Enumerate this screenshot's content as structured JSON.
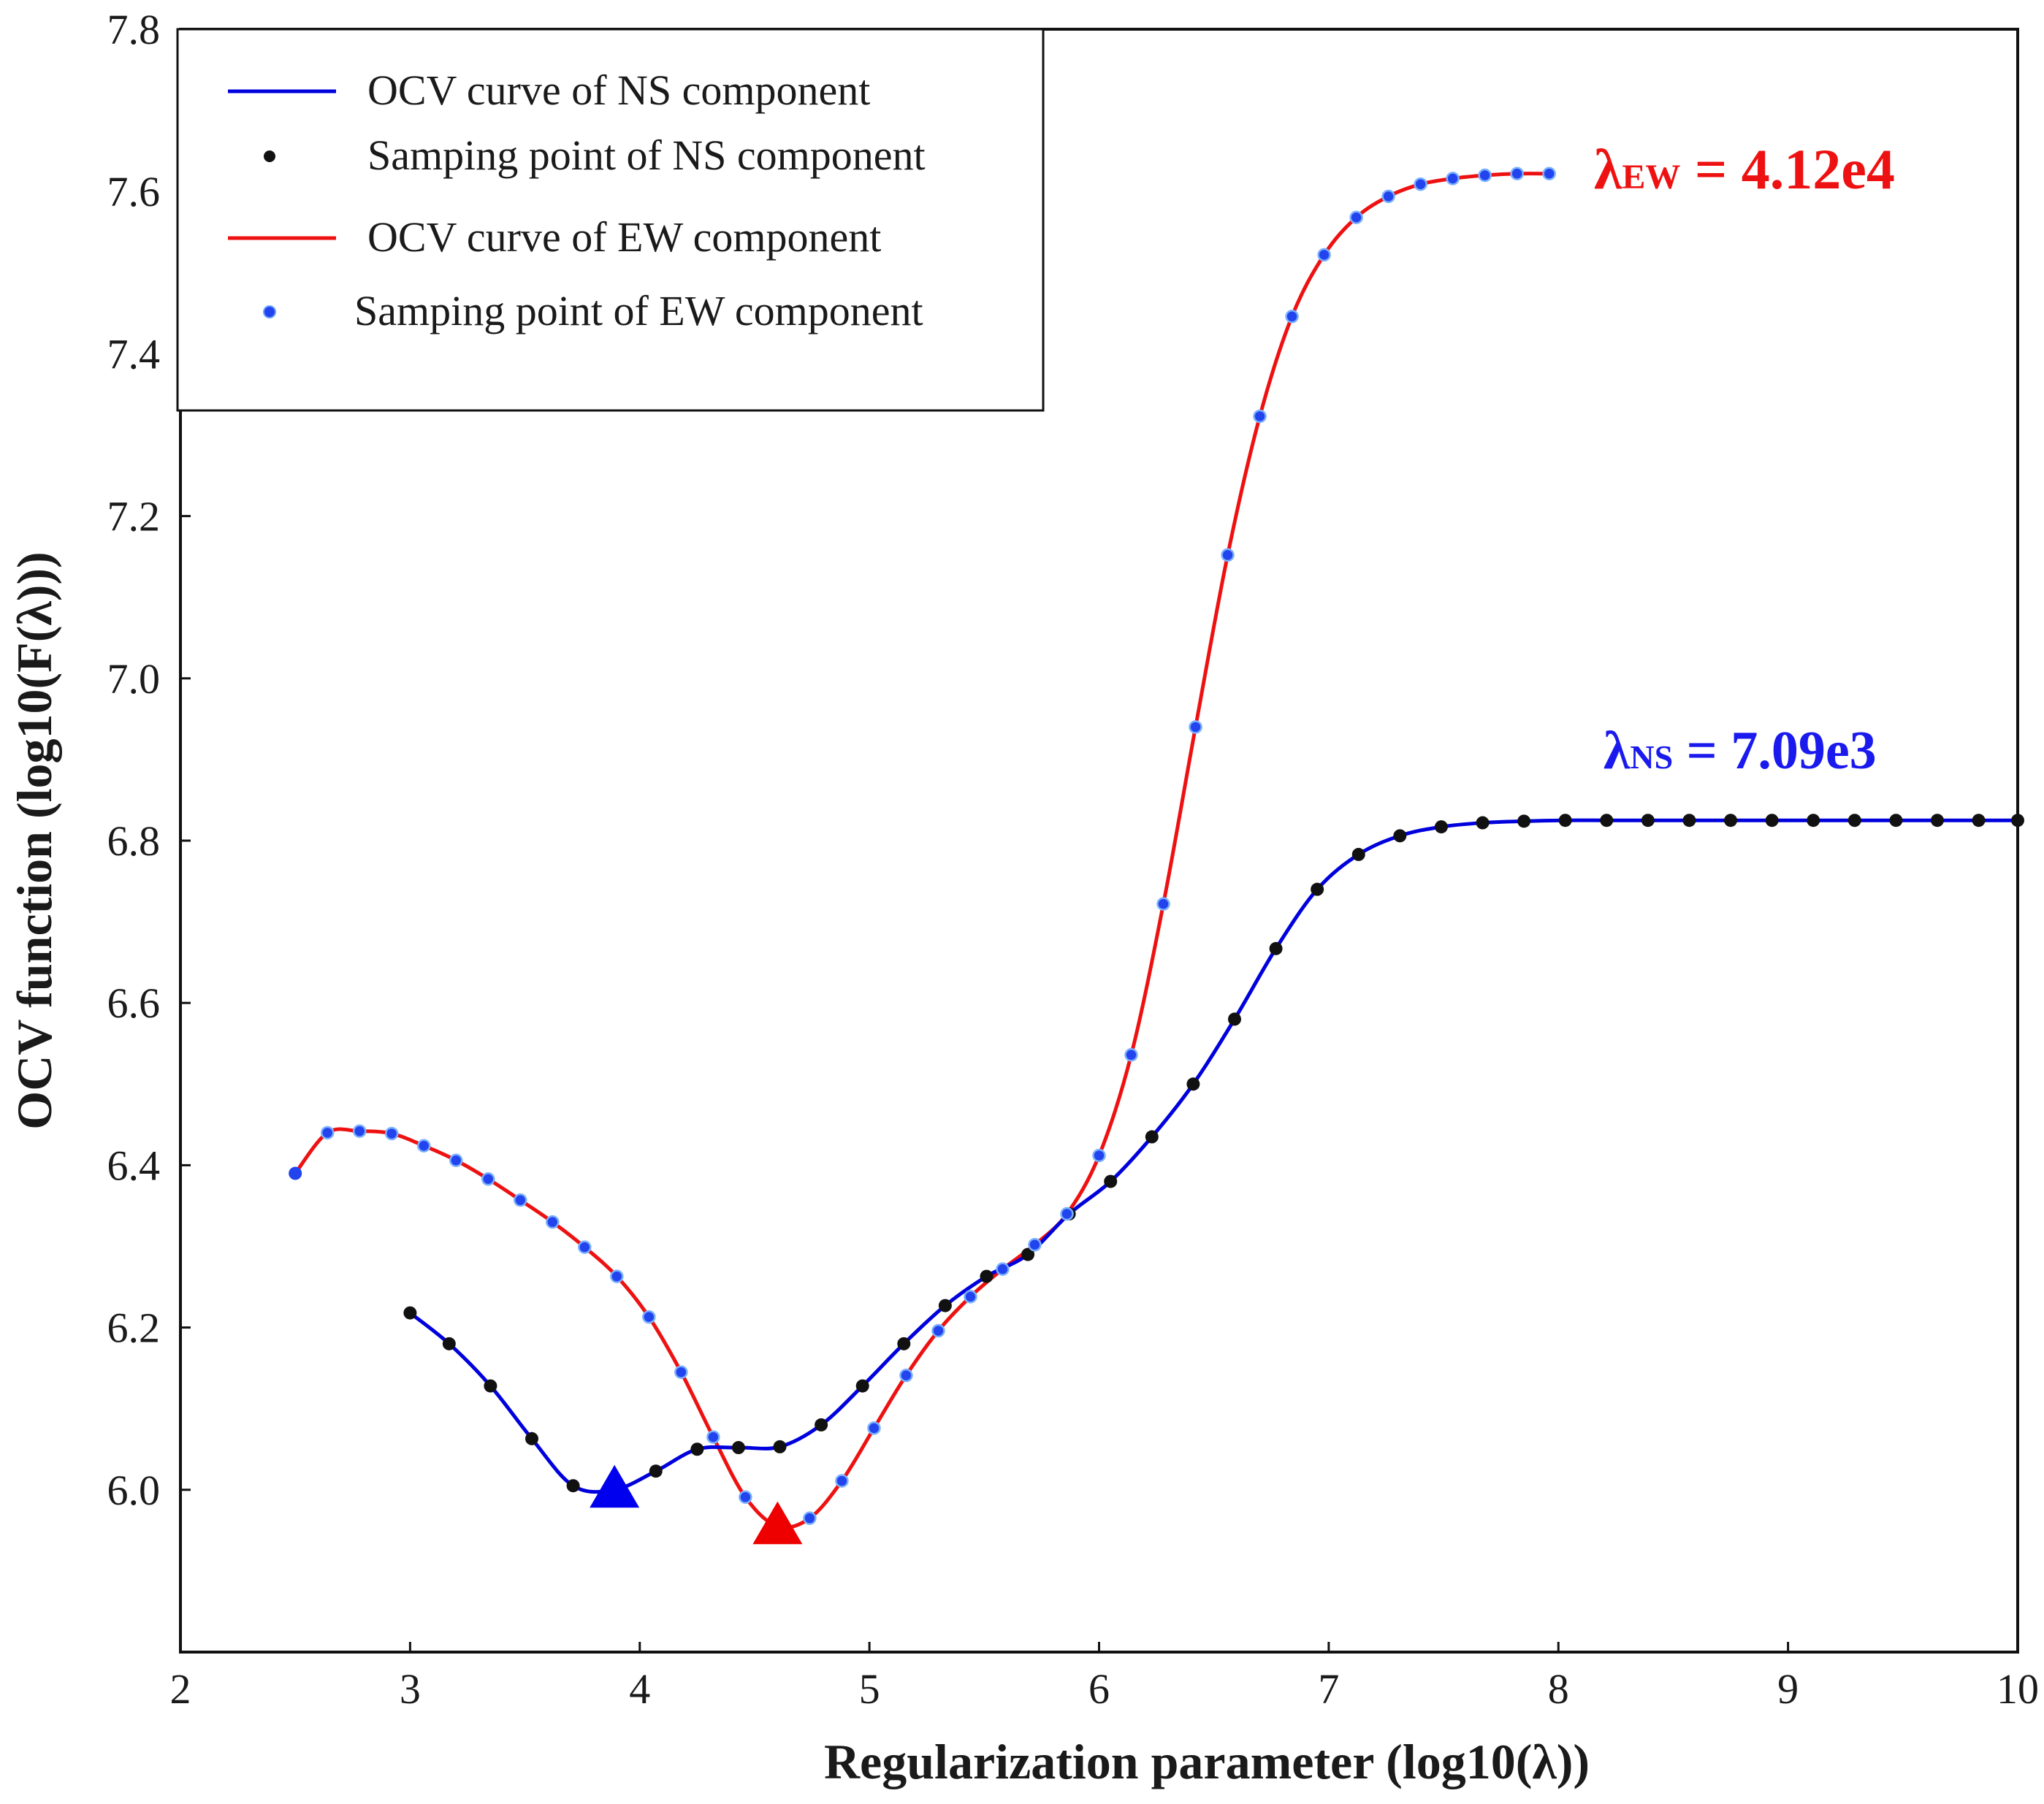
{
  "chart_data": {
    "type": "line",
    "xlabel": "Regularization parameter (log10(λ))",
    "ylabel": "OCV function (log10(F(λ)))",
    "xlim": [
      2,
      10
    ],
    "ylim": [
      5.8,
      7.8
    ],
    "xticks": [
      "2",
      "3",
      "4",
      "5",
      "6",
      "7",
      "8",
      "9",
      "10"
    ],
    "yticks": [
      "6.0",
      "6.2",
      "6.4",
      "6.6",
      "6.8",
      "7.0",
      "7.2",
      "7.4",
      "7.6",
      "7.8"
    ],
    "ytick_values": [
      6.0,
      6.2,
      6.4,
      6.6,
      6.8,
      7.0,
      7.2,
      7.4,
      7.6,
      7.8
    ],
    "legend": {
      "position": "top-left",
      "entries": [
        "OCV curve of NS component",
        "Samping point of NS component",
        "OCV curve of EW component",
        "Samping point of EW component"
      ]
    },
    "series": [
      {
        "name": "NS component",
        "line_color": "#0000dd",
        "marker_color": "#111111",
        "points": [
          [
            3.0,
            6.218
          ],
          [
            3.17,
            6.18
          ],
          [
            3.35,
            6.128
          ],
          [
            3.53,
            6.063
          ],
          [
            3.71,
            6.005
          ],
          [
            3.89,
            6.0
          ],
          [
            4.07,
            6.023
          ],
          [
            4.25,
            6.05
          ],
          [
            4.43,
            6.052
          ],
          [
            4.61,
            6.053
          ],
          [
            4.79,
            6.08
          ],
          [
            4.97,
            6.128
          ],
          [
            5.15,
            6.18
          ],
          [
            5.33,
            6.227
          ],
          [
            5.51,
            6.263
          ],
          [
            5.69,
            6.29
          ],
          [
            5.87,
            6.34
          ],
          [
            6.05,
            6.38
          ],
          [
            6.23,
            6.435
          ],
          [
            6.41,
            6.5
          ],
          [
            6.59,
            6.58
          ],
          [
            6.77,
            6.667
          ],
          [
            6.95,
            6.74
          ],
          [
            7.13,
            6.783
          ],
          [
            7.31,
            6.806
          ],
          [
            7.49,
            6.817
          ],
          [
            7.67,
            6.822
          ],
          [
            7.85,
            6.824
          ],
          [
            8.03,
            6.825
          ],
          [
            8.21,
            6.825
          ],
          [
            8.39,
            6.825
          ],
          [
            8.57,
            6.825
          ],
          [
            8.75,
            6.825
          ],
          [
            8.93,
            6.825
          ],
          [
            9.11,
            6.825
          ],
          [
            9.29,
            6.825
          ],
          [
            9.47,
            6.825
          ],
          [
            9.65,
            6.825
          ],
          [
            9.83,
            6.825
          ],
          [
            10.0,
            6.825
          ]
        ]
      },
      {
        "name": "EW component",
        "line_color": "#ee1111",
        "marker_color": "#2244ee",
        "points": [
          [
            2.5,
            6.39
          ],
          [
            2.64,
            6.44
          ],
          [
            2.78,
            6.442
          ],
          [
            2.92,
            6.439
          ],
          [
            3.06,
            6.424
          ],
          [
            3.2,
            6.406
          ],
          [
            3.34,
            6.383
          ],
          [
            3.48,
            6.357
          ],
          [
            3.62,
            6.33
          ],
          [
            3.76,
            6.299
          ],
          [
            3.9,
            6.263
          ],
          [
            4.04,
            6.213
          ],
          [
            4.18,
            6.145
          ],
          [
            4.32,
            6.065
          ],
          [
            4.46,
            5.991
          ],
          [
            4.6,
            5.955
          ],
          [
            4.74,
            5.965
          ],
          [
            4.88,
            6.011
          ],
          [
            5.02,
            6.076
          ],
          [
            5.16,
            6.141
          ],
          [
            5.3,
            6.196
          ],
          [
            5.44,
            6.238
          ],
          [
            5.58,
            6.272
          ],
          [
            5.72,
            6.302
          ],
          [
            5.86,
            6.34
          ],
          [
            6.0,
            6.412
          ],
          [
            6.14,
            6.536
          ],
          [
            6.28,
            6.722
          ],
          [
            6.42,
            6.94
          ],
          [
            6.56,
            7.152
          ],
          [
            6.7,
            7.323
          ],
          [
            6.84,
            7.446
          ],
          [
            6.98,
            7.522
          ],
          [
            7.12,
            7.568
          ],
          [
            7.26,
            7.594
          ],
          [
            7.4,
            7.609
          ],
          [
            7.54,
            7.616
          ],
          [
            7.68,
            7.62
          ],
          [
            7.82,
            7.622
          ],
          [
            7.96,
            7.622
          ]
        ]
      }
    ],
    "minima": [
      {
        "series": "NS component",
        "x": 3.89,
        "y": 6.0,
        "color": "#0000ee"
      },
      {
        "series": "EW component",
        "x": 4.6,
        "y": 5.955,
        "color": "#ee0000"
      }
    ],
    "annotations": [
      {
        "lambda": "λ",
        "sub": "EW",
        "rest": " = 4.12e4",
        "color": "#ee1111"
      },
      {
        "lambda": "λ",
        "sub": "NS",
        "rest": " = 7.09e3",
        "color": "#1a1aee"
      }
    ]
  }
}
